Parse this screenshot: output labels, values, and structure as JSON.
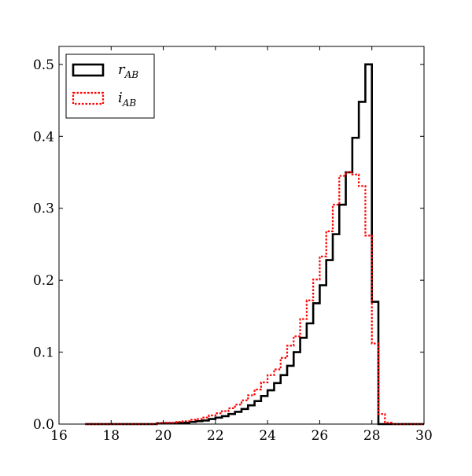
{
  "chart_data": {
    "type": "step-histogram",
    "title": "",
    "xlabel": "",
    "ylabel": "",
    "xlim": [
      16,
      30
    ],
    "ylim": [
      0,
      0.525
    ],
    "xticks": [
      16,
      18,
      20,
      22,
      24,
      26,
      28,
      30
    ],
    "yticks": [
      0.0,
      0.1,
      0.2,
      0.3,
      0.4,
      0.5
    ],
    "xtick_labels": [
      "16",
      "18",
      "20",
      "22",
      "24",
      "26",
      "28",
      "30"
    ],
    "ytick_labels": [
      "0.0",
      "0.1",
      "0.2",
      "0.3",
      "0.4",
      "0.5"
    ],
    "grid": false,
    "legend": {
      "placement": "upper-left"
    },
    "bin_edges": [
      17.0,
      17.25,
      17.5,
      17.75,
      18.0,
      18.25,
      18.5,
      18.75,
      19.0,
      19.25,
      19.5,
      19.75,
      20.0,
      20.25,
      20.5,
      20.75,
      21.0,
      21.25,
      21.5,
      21.75,
      22.0,
      22.25,
      22.5,
      22.75,
      23.0,
      23.25,
      23.5,
      23.75,
      24.0,
      24.25,
      24.5,
      24.75,
      25.0,
      25.25,
      25.5,
      25.75,
      26.0,
      26.25,
      26.5,
      26.75,
      27.0,
      27.25,
      27.5,
      27.75,
      28.0,
      28.25,
      28.5,
      28.75,
      29.0,
      29.25,
      29.5,
      29.75,
      30.0
    ],
    "series": [
      {
        "name": "r",
        "name_sub": "AB",
        "color": "#000000",
        "dash": "solid",
        "values": [
          0.0,
          0.0,
          0.0,
          0.0,
          0.0,
          0.0,
          0.0,
          0.0,
          0.0,
          0.0,
          0.0,
          0.001,
          0.001,
          0.001,
          0.002,
          0.002,
          0.003,
          0.004,
          0.005,
          0.007,
          0.009,
          0.011,
          0.014,
          0.017,
          0.021,
          0.026,
          0.032,
          0.039,
          0.047,
          0.057,
          0.068,
          0.081,
          0.1,
          0.12,
          0.14,
          0.168,
          0.193,
          0.228,
          0.264,
          0.305,
          0.35,
          0.398,
          0.448,
          0.5,
          0.17,
          0.0,
          0.0,
          0.0,
          0.0,
          0.0,
          0.0,
          0.0
        ]
      },
      {
        "name": "i",
        "name_sub": "AB",
        "color": "#ff0000",
        "dash": "dotted",
        "values": [
          0.0,
          0.0,
          0.0,
          0.0,
          0.0,
          0.0,
          0.0,
          0.0,
          0.0,
          0.0,
          0.0,
          0.001,
          0.002,
          0.002,
          0.003,
          0.004,
          0.006,
          0.007,
          0.009,
          0.012,
          0.015,
          0.018,
          0.022,
          0.027,
          0.033,
          0.04,
          0.048,
          0.058,
          0.068,
          0.076,
          0.092,
          0.109,
          0.122,
          0.146,
          0.172,
          0.201,
          0.233,
          0.268,
          0.305,
          0.345,
          0.35,
          0.347,
          0.331,
          0.262,
          0.112,
          0.014,
          0.002,
          0.0,
          0.0,
          0.0,
          0.0,
          0.0
        ]
      }
    ]
  }
}
